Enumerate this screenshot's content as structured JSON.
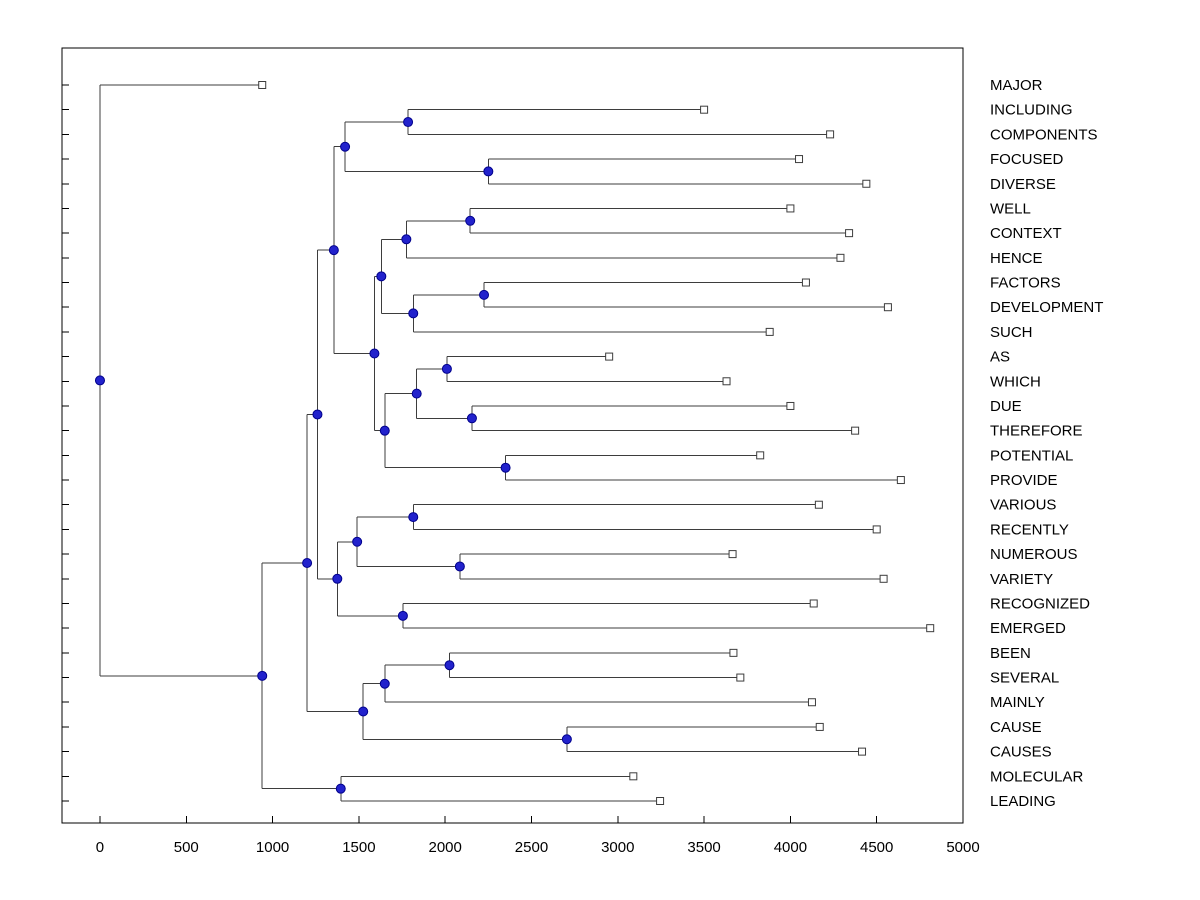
{
  "figure": {
    "background": "#ffffff",
    "axis_color": "#000000",
    "line_color": "#3d3d3d",
    "internal_node": {
      "shape": "circle",
      "fill": "#2222cc",
      "stroke": "#00008b"
    },
    "leaf_node": {
      "shape": "square",
      "fill": "#ffffff",
      "stroke": "#3d3d3d"
    }
  },
  "chart_data": {
    "type": "dendrogram",
    "orientation": "horizontal-root-left",
    "title": "",
    "xlabel": "",
    "ylabel": "",
    "grid": false,
    "xlim": [
      -220,
      5000
    ],
    "x_ticks": [
      0,
      500,
      1000,
      1500,
      2000,
      2500,
      3000,
      3500,
      4000,
      4500,
      5000
    ],
    "leaf_count": 30,
    "leaf_labels": [
      "MAJOR",
      "INCLUDING",
      "COMPONENTS",
      "FOCUSED",
      "DIVERSE",
      "WELL",
      "CONTEXT",
      "HENCE",
      "FACTORS",
      "DEVELOPMENT",
      "SUCH",
      "AS",
      "WHICH",
      "DUE",
      "THEREFORE",
      "POTENTIAL",
      "PROVIDE",
      "VARIOUS",
      "RECENTLY",
      "NUMEROUS",
      "VARIETY",
      "RECOGNIZED",
      "EMERGED",
      "BEEN",
      "SEVERAL",
      "MAINLY",
      "CAUSE",
      "CAUSES",
      "MOLECULAR",
      "LEADING"
    ],
    "tree": {
      "d": 0,
      "c": [
        {
          "label": "MAJOR",
          "d": 940
        },
        {
          "d": 940,
          "c": [
            {
              "d": 1200,
              "c": [
                {
                  "d": 1260,
                  "c": [
                    {
                      "d": 1355,
                      "c": [
                        {
                          "d": 1420,
                          "c": [
                            {
                              "d": 1785,
                              "c": [
                                {
                                  "label": "INCLUDING",
                                  "d": 3500
                                },
                                {
                                  "label": "COMPONENTS",
                                  "d": 4230
                                }
                              ]
                            },
                            {
                              "d": 2250,
                              "c": [
                                {
                                  "label": "FOCUSED",
                                  "d": 4050
                                },
                                {
                                  "label": "DIVERSE",
                                  "d": 4440
                                }
                              ]
                            }
                          ]
                        },
                        {
                          "d": 1590,
                          "c": [
                            {
                              "d": 1630,
                              "c": [
                                {
                                  "d": 1775,
                                  "c": [
                                    {
                                      "d": 2145,
                                      "c": [
                                        {
                                          "label": "WELL",
                                          "d": 4000
                                        },
                                        {
                                          "label": "CONTEXT",
                                          "d": 4340
                                        }
                                      ]
                                    },
                                    {
                                      "label": "HENCE",
                                      "d": 4290
                                    }
                                  ]
                                },
                                {
                                  "d": 1815,
                                  "c": [
                                    {
                                      "d": 2225,
                                      "c": [
                                        {
                                          "label": "FACTORS",
                                          "d": 4090
                                        },
                                        {
                                          "label": "DEVELOPMENT",
                                          "d": 4565
                                        }
                                      ]
                                    },
                                    {
                                      "label": "SUCH",
                                      "d": 3880
                                    }
                                  ]
                                }
                              ]
                            },
                            {
                              "d": 1650,
                              "c": [
                                {
                                  "d": 1835,
                                  "c": [
                                    {
                                      "d": 2010,
                                      "c": [
                                        {
                                          "label": "AS",
                                          "d": 2950
                                        },
                                        {
                                          "label": "WHICH",
                                          "d": 3630
                                        }
                                      ]
                                    },
                                    {
                                      "d": 2155,
                                      "c": [
                                        {
                                          "label": "DUE",
                                          "d": 4000
                                        },
                                        {
                                          "label": "THEREFORE",
                                          "d": 4375
                                        }
                                      ]
                                    }
                                  ]
                                },
                                {
                                  "d": 2350,
                                  "c": [
                                    {
                                      "label": "POTENTIAL",
                                      "d": 3825
                                    },
                                    {
                                      "label": "PROVIDE",
                                      "d": 4640
                                    }
                                  ]
                                }
                              ]
                            }
                          ]
                        }
                      ]
                    },
                    {
                      "d": 1375,
                      "c": [
                        {
                          "d": 1490,
                          "c": [
                            {
                              "d": 1815,
                              "c": [
                                {
                                  "label": "VARIOUS",
                                  "d": 4165
                                },
                                {
                                  "label": "RECENTLY",
                                  "d": 4500
                                }
                              ]
                            },
                            {
                              "d": 2085,
                              "c": [
                                {
                                  "label": "NUMEROUS",
                                  "d": 3665
                                },
                                {
                                  "label": "VARIETY",
                                  "d": 4540
                                }
                              ]
                            }
                          ]
                        },
                        {
                          "d": 1755,
                          "c": [
                            {
                              "label": "RECOGNIZED",
                              "d": 4135
                            },
                            {
                              "label": "EMERGED",
                              "d": 4810
                            }
                          ]
                        }
                      ]
                    }
                  ]
                },
                {
                  "d": 1525,
                  "c": [
                    {
                      "d": 1650,
                      "c": [
                        {
                          "d": 2025,
                          "c": [
                            {
                              "label": "BEEN",
                              "d": 3670
                            },
                            {
                              "label": "SEVERAL",
                              "d": 3710
                            }
                          ]
                        },
                        {
                          "label": "MAINLY",
                          "d": 4125
                        }
                      ]
                    },
                    {
                      "d": 2705,
                      "c": [
                        {
                          "label": "CAUSE",
                          "d": 4170
                        },
                        {
                          "label": "CAUSES",
                          "d": 4415
                        }
                      ]
                    }
                  ]
                }
              ]
            },
            {
              "d": 1395,
              "c": [
                {
                  "label": "MOLECULAR",
                  "d": 3090
                },
                {
                  "label": "LEADING",
                  "d": 3245
                }
              ]
            }
          ]
        }
      ]
    }
  }
}
